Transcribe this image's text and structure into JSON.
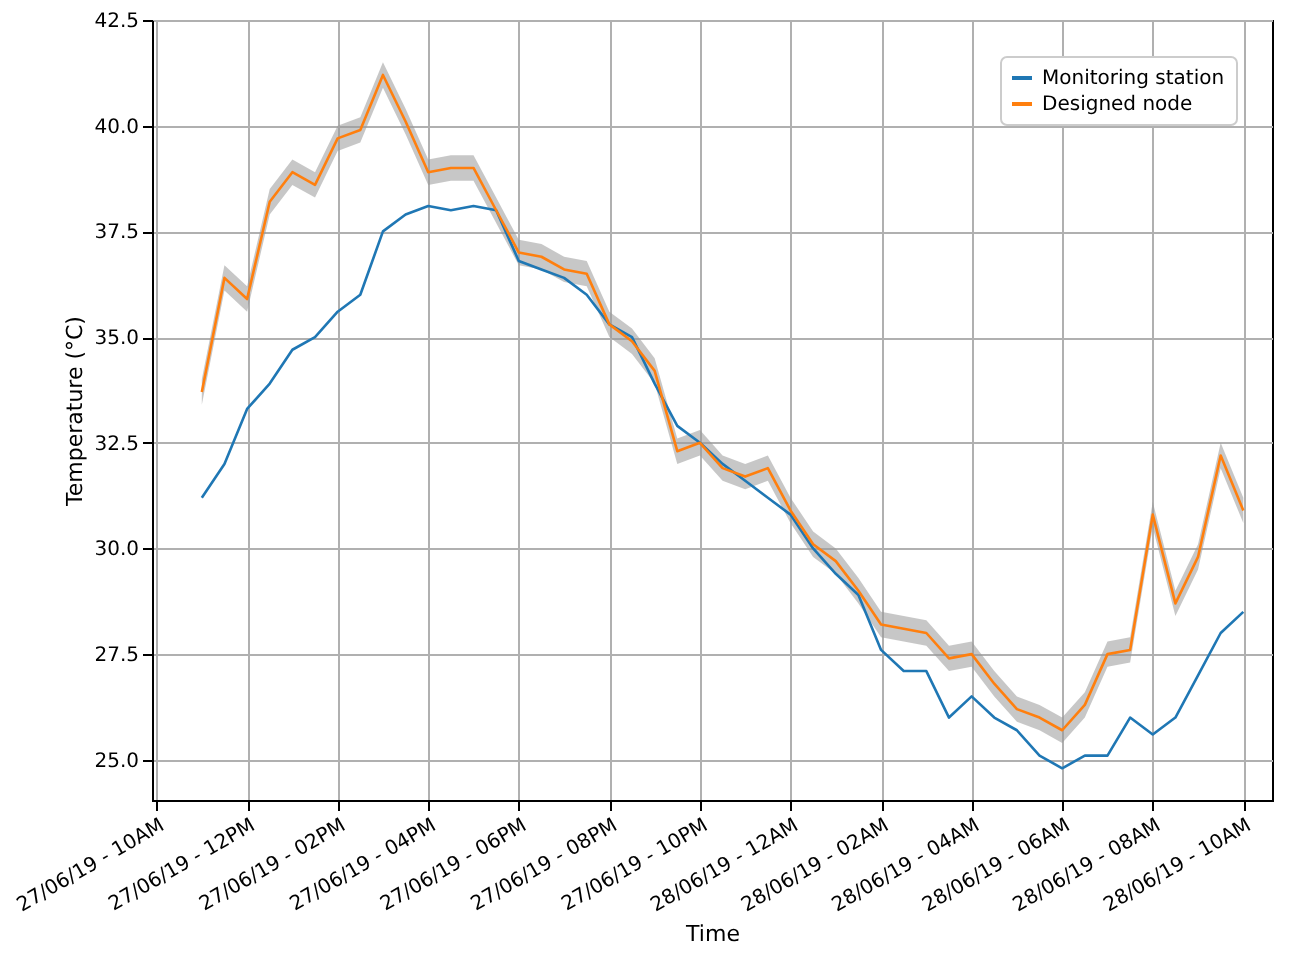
{
  "chart_data": {
    "type": "line",
    "xlabel": "Time",
    "ylabel": "Temperature (°C)",
    "x": [
      "--06-27T11:00",
      "--06-27T11:30",
      "--06-27T12:00",
      "--06-27T12:30",
      "--06-27T13:00",
      "--06-27T13:30",
      "--06-27T14:00",
      "--06-27T14:30",
      "--06-27T15:00",
      "--06-27T15:30",
      "--06-27T16:00",
      "--06-27T16:30",
      "--06-27T17:00",
      "--06-27T17:30",
      "--06-27T18:00",
      "--06-27T18:30",
      "--06-27T19:00",
      "--06-27T19:30",
      "--06-27T20:00",
      "--06-27T20:30",
      "--06-27T21:00",
      "--06-27T21:30",
      "--06-27T22:00",
      "--06-27T22:30",
      "--06-27T23:00",
      "--06-27T23:30",
      "--06-28T00:00",
      "--06-28T00:30",
      "--06-28T01:00",
      "--06-28T01:30",
      "--06-28T02:00",
      "--06-28T02:30",
      "--06-28T03:00",
      "--06-28T03:30",
      "--06-28T04:00",
      "--06-28T04:30",
      "--06-28T05:00",
      "--06-28T05:30",
      "--06-28T06:00",
      "--06-28T06:30",
      "--06-28T07:00",
      "--06-28T07:30",
      "--06-28T08:00",
      "--06-28T08:30",
      "--06-28T09:00",
      "--06-28T09:30",
      "--06-28T10:00"
    ],
    "series": [
      {
        "name": "Monitoring station",
        "color": "#1f77b4",
        "values": [
          31.2,
          32.0,
          33.3,
          33.9,
          34.7,
          35.0,
          35.6,
          36.0,
          37.5,
          37.9,
          38.1,
          38.0,
          38.1,
          38.0,
          36.8,
          36.6,
          36.4,
          36.0,
          35.3,
          35.0,
          33.9,
          32.9,
          32.5,
          32.0,
          31.6,
          31.2,
          30.8,
          30.0,
          29.4,
          28.9,
          27.6,
          27.1,
          27.1,
          26.0,
          26.5,
          26.0,
          25.7,
          25.1,
          24.8,
          25.1,
          25.1,
          26.0,
          25.6,
          26.0,
          27.0,
          28.0,
          28.5
        ]
      },
      {
        "name": "Designed node",
        "color": "#ff7f0e",
        "values": [
          33.7,
          36.4,
          35.9,
          38.2,
          38.9,
          38.6,
          39.7,
          39.9,
          41.2,
          40.1,
          38.9,
          39.0,
          39.0,
          38.0,
          37.0,
          36.9,
          36.6,
          36.5,
          35.3,
          34.9,
          34.2,
          32.3,
          32.5,
          31.9,
          31.7,
          31.9,
          30.9,
          30.1,
          29.7,
          29.0,
          28.2,
          28.1,
          28.0,
          27.4,
          27.5,
          26.8,
          26.2,
          26.0,
          25.7,
          26.3,
          27.5,
          27.6,
          30.8,
          28.7,
          29.8,
          32.2,
          30.9
        ],
        "lower": [
          33.4,
          36.1,
          35.6,
          37.9,
          38.6,
          38.3,
          39.4,
          39.6,
          40.9,
          39.8,
          38.6,
          38.7,
          38.7,
          37.7,
          36.7,
          36.6,
          36.3,
          36.2,
          35.0,
          34.6,
          33.9,
          32.0,
          32.2,
          31.6,
          31.4,
          31.6,
          30.6,
          29.8,
          29.4,
          28.7,
          27.9,
          27.8,
          27.7,
          27.1,
          27.2,
          26.5,
          25.9,
          25.7,
          25.4,
          26.0,
          27.2,
          27.3,
          30.5,
          28.4,
          29.5,
          31.9,
          30.6
        ],
        "upper": [
          34.0,
          36.7,
          36.2,
          38.5,
          39.2,
          38.9,
          40.0,
          40.2,
          41.5,
          40.4,
          39.2,
          39.3,
          39.3,
          38.3,
          37.3,
          37.2,
          36.9,
          36.8,
          35.6,
          35.2,
          34.5,
          32.6,
          32.8,
          32.2,
          32.0,
          32.2,
          31.2,
          30.4,
          30.0,
          29.3,
          28.5,
          28.4,
          28.3,
          27.7,
          27.8,
          27.1,
          26.5,
          26.3,
          26.0,
          26.6,
          27.8,
          27.9,
          31.1,
          29.0,
          30.1,
          32.5,
          31.2
        ]
      }
    ],
    "xlim": [
      "--06-27T09:54",
      "--06-28T10:38"
    ],
    "xticks": [
      {
        "value": "--06-27T10:00",
        "label": "27/06/19 - 10AM"
      },
      {
        "value": "--06-27T12:00",
        "label": "27/06/19 - 12PM"
      },
      {
        "value": "--06-27T14:00",
        "label": "27/06/19 - 02PM"
      },
      {
        "value": "--06-27T16:00",
        "label": "27/06/19 - 04PM"
      },
      {
        "value": "--06-27T18:00",
        "label": "27/06/19 - 06PM"
      },
      {
        "value": "--06-27T20:00",
        "label": "27/06/19 - 08PM"
      },
      {
        "value": "--06-27T22:00",
        "label": "27/06/19 - 10PM"
      },
      {
        "value": "--06-28T00:00",
        "label": "28/06/19 - 12AM"
      },
      {
        "value": "--06-28T02:00",
        "label": "28/06/19 - 02AM"
      },
      {
        "value": "--06-28T04:00",
        "label": "28/06/19 - 04AM"
      },
      {
        "value": "--06-28T06:00",
        "label": "28/06/19 - 06AM"
      },
      {
        "value": "--06-28T08:00",
        "label": "28/06/19 - 08AM"
      },
      {
        "value": "--06-28T10:00",
        "label": "28/06/19 - 10AM"
      }
    ],
    "ylim": [
      24.05,
      42.5
    ],
    "yticks": [
      {
        "value": 25,
        "label": "25.0"
      },
      {
        "value": 27.5,
        "label": "27.5"
      },
      {
        "value": 30,
        "label": "30.0"
      },
      {
        "value": 32.5,
        "label": "32.5"
      },
      {
        "value": 35,
        "label": "35.0"
      },
      {
        "value": 37.5,
        "label": "37.5"
      },
      {
        "value": 40,
        "label": "40.0"
      },
      {
        "value": 42.5,
        "label": "42.5"
      }
    ],
    "grid": true,
    "legend": "top right"
  }
}
